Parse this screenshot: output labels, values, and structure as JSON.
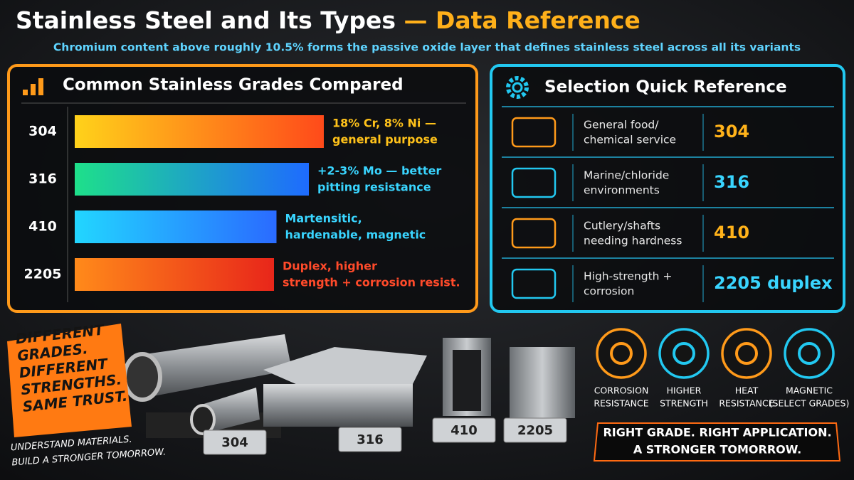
{
  "header": {
    "title": "Stainless Steel and Its Types",
    "title_accent": "— Data Reference",
    "subtitle": "Chromium content above roughly 10.5% forms the passive oxide layer that defines stainless steel across all its variants"
  },
  "grades_chart": {
    "type": "bar",
    "title": "Common Stainless Grades Compared",
    "categories": [
      "304",
      "316",
      "410",
      "2205"
    ],
    "values": [
      100,
      94,
      81,
      80
    ],
    "gradients": [
      [
        "#ffd21a",
        "#ff4a1a"
      ],
      [
        "#1ee08a",
        "#1e6bff"
      ],
      [
        "#22d6ff",
        "#2a6bff"
      ],
      [
        "#ff8a1a",
        "#e8261a"
      ]
    ],
    "label_colors": [
      "#ffc21a",
      "#39d5ff",
      "#39d5ff",
      "#ff4a2a"
    ],
    "descriptions": [
      [
        "18% Cr, 8% Ni —",
        "general purpose"
      ],
      [
        "+2-3% Mo — better",
        "pitting resistance"
      ],
      [
        "Martensitic,",
        "hardenable, magnetic"
      ],
      [
        "Duplex, higher",
        "strength + corrosion resist."
      ]
    ]
  },
  "quick_reference": {
    "title": "Selection Quick Reference",
    "rows": [
      {
        "use": [
          "General food/",
          "chemical service"
        ],
        "grade": "304",
        "color": "#ffb21a"
      },
      {
        "use": [
          "Marine/chloride",
          "environments"
        ],
        "grade": "316",
        "color": "#39d5ff"
      },
      {
        "use": [
          "Cutlery/shafts",
          "needing hardness"
        ],
        "grade": "410",
        "color": "#ffb21a"
      },
      {
        "use": [
          "High-strength +",
          "corrosion"
        ],
        "grade": "2205 duplex",
        "color": "#39d5ff"
      }
    ]
  },
  "properties": [
    {
      "label": [
        "CORROSION",
        "RESISTANCE"
      ],
      "color": "#ff9a1a"
    },
    {
      "label": [
        "HIGHER",
        "STRENGTH"
      ],
      "color": "#22c8f0"
    },
    {
      "label": [
        "HEAT",
        "RESISTANCE"
      ],
      "color": "#ff9a1a"
    },
    {
      "label": [
        "MAGNETIC",
        "(SELECT GRADES)"
      ],
      "color": "#22c8f0"
    }
  ],
  "tagline": [
    "RIGHT GRADE. RIGHT APPLICATION.",
    "A STRONGER TOMORROW."
  ],
  "slogan": [
    "DIFFERENT",
    "GRADES.",
    "DIFFERENT",
    "STRENGTHS.",
    "SAME TRUST."
  ],
  "slogan_sub": [
    "UNDERSTAND MATERIALS.",
    "BUILD A STRONGER TOMORROW."
  ],
  "plates": [
    "304",
    "316",
    "410",
    "2205"
  ]
}
